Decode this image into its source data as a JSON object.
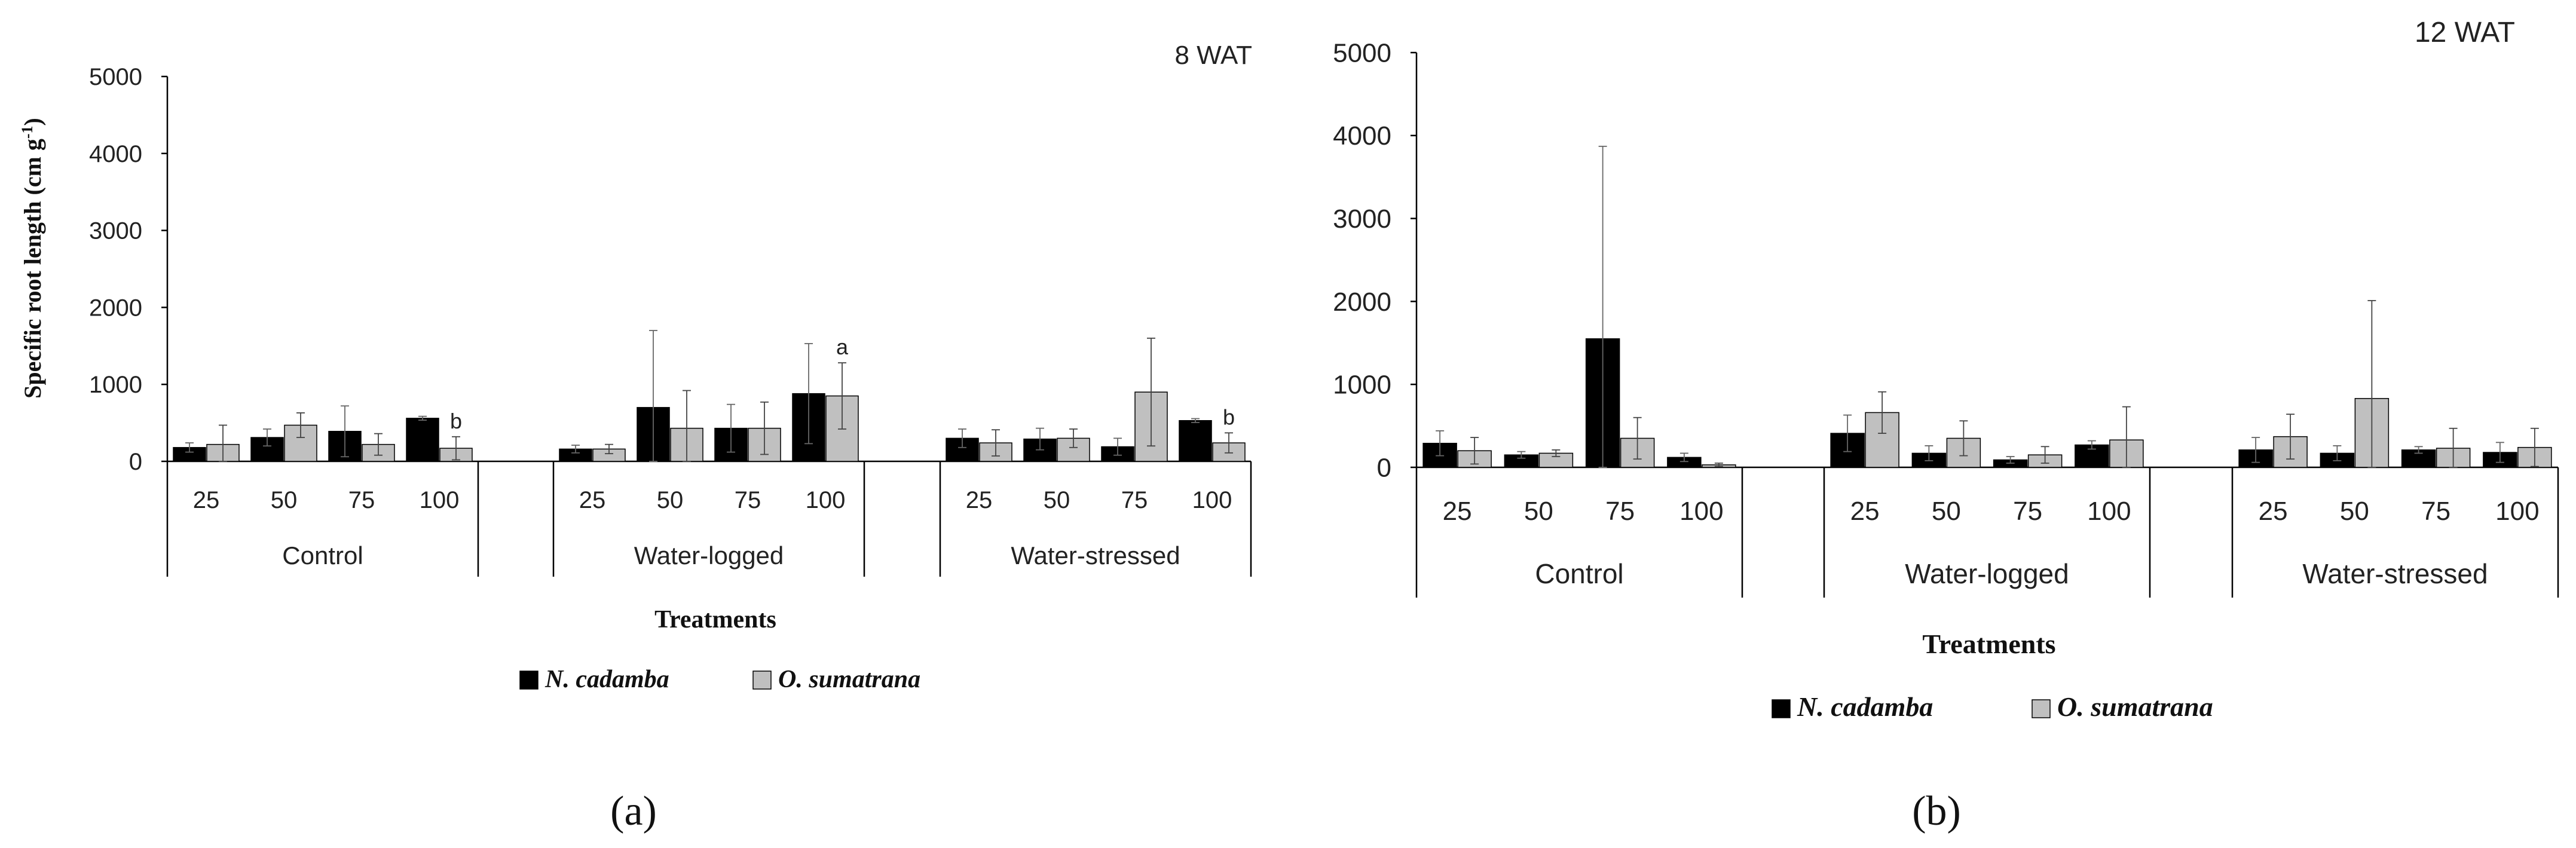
{
  "chart_data": [
    {
      "type": "bar",
      "panel_label": "(a)",
      "title": "8 WAT",
      "ylabel": "Specific root length (cm g-1)",
      "xlabel": "Treatments",
      "ylim": [
        0,
        5000
      ],
      "yticks": [
        "0",
        "1000",
        "2000",
        "3000",
        "4000",
        "5000"
      ],
      "groups": [
        "Control",
        "Water-logged",
        "Water-stressed"
      ],
      "categories": [
        "25",
        "50",
        "75",
        "100"
      ],
      "series": [
        {
          "name": "N. cadamba",
          "color": "#000000",
          "values": [
            [
              180,
              310,
              390,
              560
            ],
            [
              160,
              700,
              430,
              880
            ],
            [
              300,
              290,
              190,
              530
            ]
          ],
          "errors": [
            [
              60,
              110,
              330,
              25
            ],
            [
              50,
              1000,
              310,
              650
            ],
            [
              120,
              140,
              110,
              25
            ]
          ]
        },
        {
          "name": "O. sumatrana",
          "color": "#c0c0c0",
          "values": [
            [
              220,
              470,
              220,
              170
            ],
            [
              160,
              430,
              430,
              850
            ],
            [
              240,
              300,
              900,
              240
            ]
          ],
          "errors": [
            [
              250,
              160,
              140,
              150
            ],
            [
              60,
              490,
              340,
              430
            ],
            [
              170,
              120,
              700,
              130
            ]
          ]
        }
      ],
      "annotations": [
        {
          "group": 0,
          "category": 3,
          "series": 1,
          "text": "b"
        },
        {
          "group": 1,
          "category": 3,
          "series": 1,
          "text": "a"
        },
        {
          "group": 2,
          "category": 3,
          "series": 1,
          "text": "b"
        }
      ],
      "legend": {
        "position": "bottom-center",
        "labels": [
          "N. cadamba",
          "O. sumatrana"
        ]
      }
    },
    {
      "type": "bar",
      "panel_label": "(b)",
      "title": "12 WAT",
      "ylabel": "",
      "xlabel": "Treatments",
      "ylim": [
        0,
        5000
      ],
      "yticks": [
        "0",
        "1000",
        "2000",
        "3000",
        "4000",
        "5000"
      ],
      "groups": [
        "Control",
        "Water-logged",
        "Water-stressed"
      ],
      "categories": [
        "25",
        "50",
        "75",
        "100"
      ],
      "series": [
        {
          "name": "N. cadamba",
          "color": "#000000",
          "values": [
            [
              290,
              150,
              1550,
              120
            ],
            [
              410,
              170,
              90,
              270
            ],
            [
              210,
              170,
              210,
              180
            ]
          ],
          "errors": [
            [
              150,
              40,
              2320,
              50
            ],
            [
              220,
              90,
              40,
              50
            ],
            [
              150,
              90,
              40,
              120
            ]
          ]
        },
        {
          "name": "O. sumatrana",
          "color": "#c0c0c0",
          "values": [
            [
              200,
              170,
              350,
              30
            ],
            [
              660,
              350,
              150,
              330
            ],
            [
              370,
              830,
              230,
              240
            ]
          ],
          "errors": [
            [
              160,
              40,
              250,
              20
            ],
            [
              250,
              210,
              100,
              400
            ],
            [
              270,
              1180,
              240,
              230
            ]
          ]
        }
      ],
      "annotations": [],
      "legend": {
        "position": "bottom-center",
        "labels": [
          "N. cadamba",
          "O. sumatrana"
        ]
      }
    }
  ]
}
